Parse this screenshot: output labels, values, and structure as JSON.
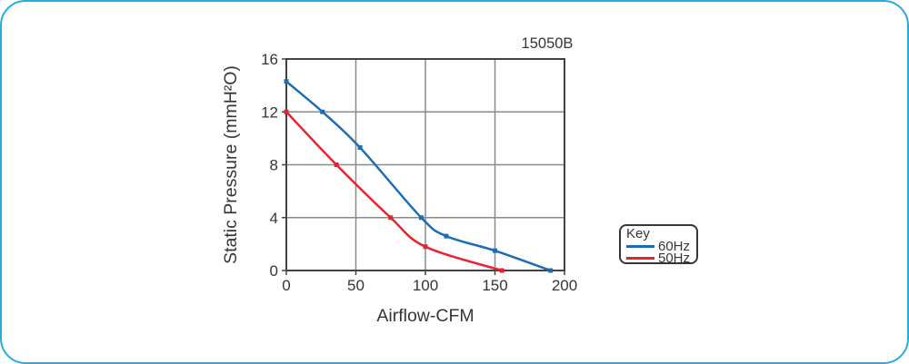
{
  "panel": {
    "border_color": "#29ABE2",
    "background": "#ffffff"
  },
  "colors": {
    "text": "#3a3335",
    "frame": "#454042",
    "grid": "#8a8a8a",
    "blue_series": "#1C6BB5",
    "red_series": "#E8212E"
  },
  "chart_data": {
    "type": "line",
    "title": "15050B",
    "xlabel": "Airflow-CFM",
    "ylabel": "Static Pressure (mmH²O)",
    "xlim": [
      0,
      200
    ],
    "ylim": [
      0,
      16
    ],
    "xticks": [
      0,
      50,
      100,
      150,
      200
    ],
    "yticks": [
      0,
      4,
      8,
      12,
      16
    ],
    "grid": true,
    "legend": {
      "title": "Key",
      "position": "right-outside"
    },
    "series": [
      {
        "name": "60Hz",
        "color": "#1C6BB5",
        "points": [
          [
            0,
            14.3
          ],
          [
            26,
            12
          ],
          [
            53,
            9.3
          ],
          [
            97,
            4
          ],
          [
            115,
            2.6
          ],
          [
            150,
            1.5
          ],
          [
            190,
            0
          ]
        ]
      },
      {
        "name": "50Hz",
        "color": "#E8212E",
        "points": [
          [
            0,
            12
          ],
          [
            36,
            8
          ],
          [
            75,
            4
          ],
          [
            100,
            1.8
          ],
          [
            155,
            0
          ]
        ]
      }
    ]
  }
}
